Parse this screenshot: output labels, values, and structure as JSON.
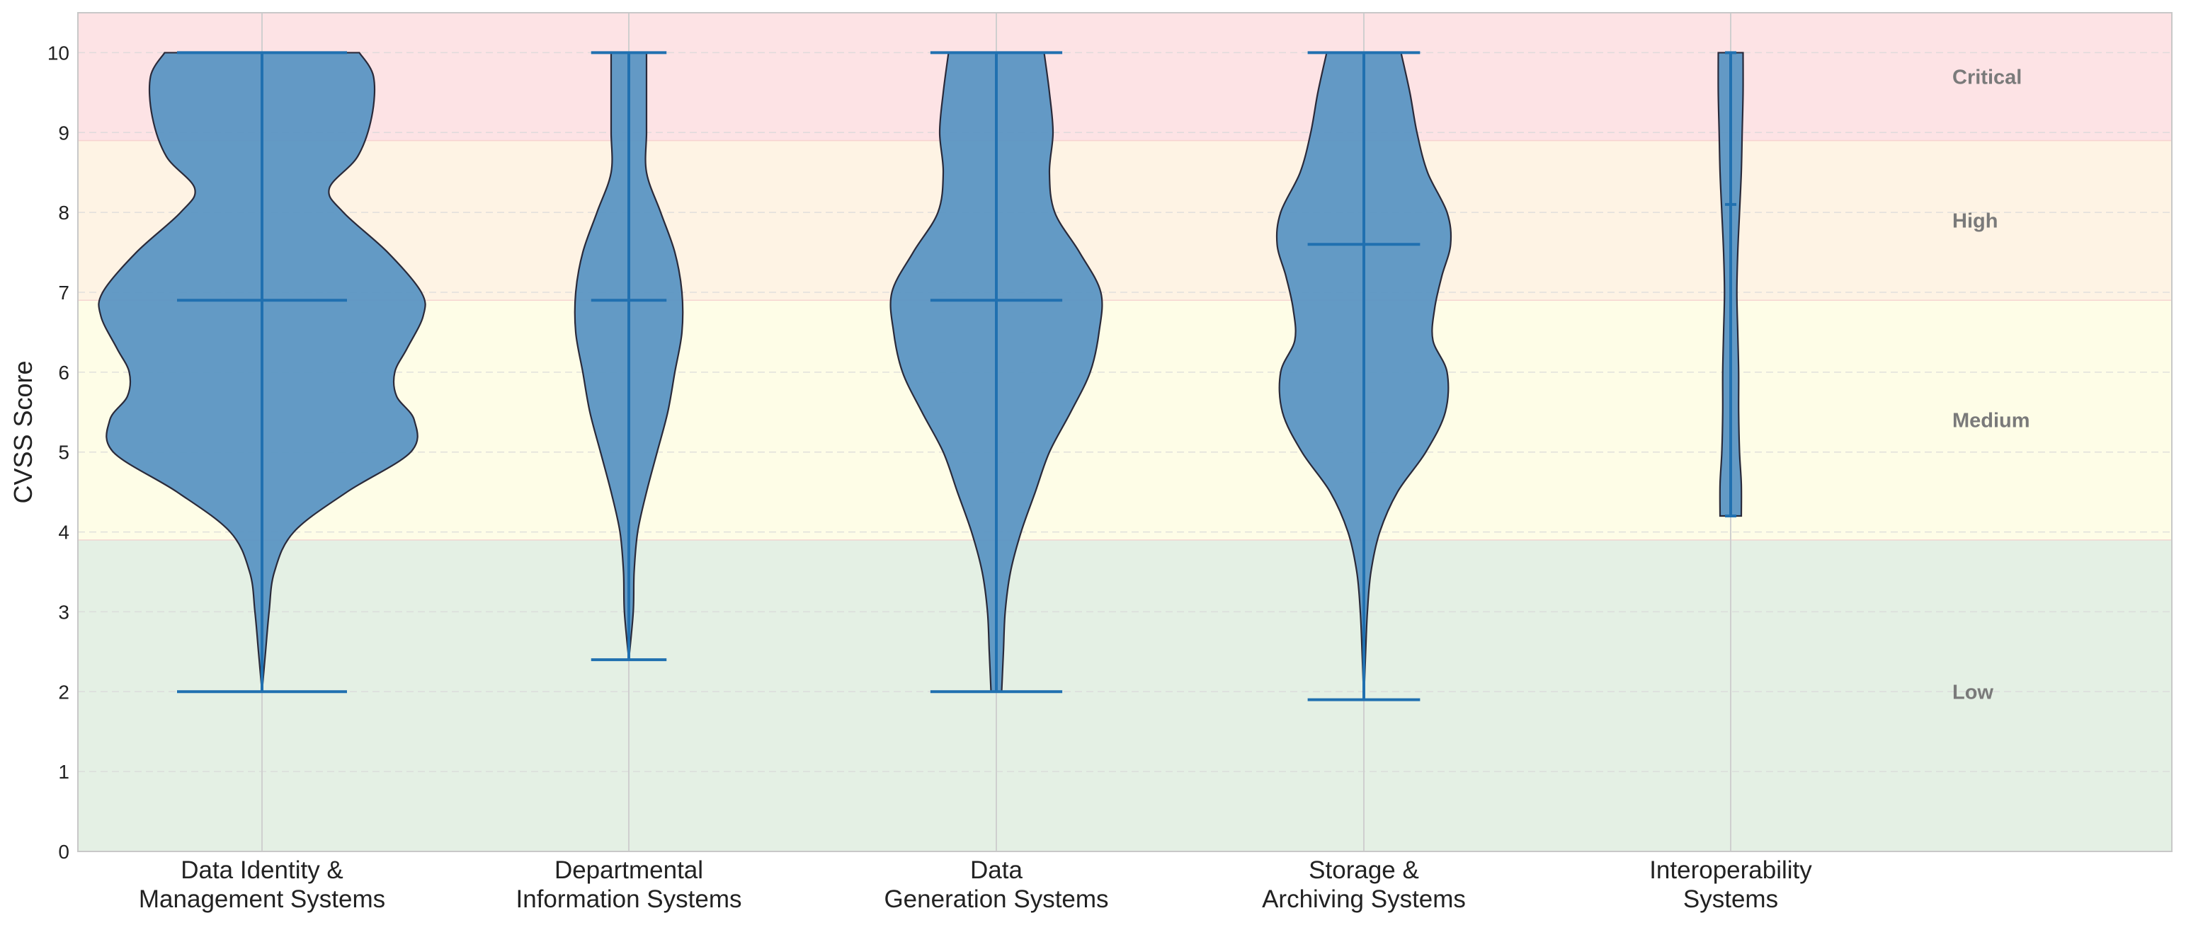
{
  "chart_data": {
    "type": "violin",
    "ylabel": "CVSS Score",
    "ylim": [
      0,
      10.5
    ],
    "yticks": [
      0,
      1,
      2,
      3,
      4,
      5,
      6,
      7,
      8,
      9,
      10
    ],
    "categories": [
      [
        "Data Identity &",
        "Management Systems"
      ],
      [
        "Departmental",
        "Information Systems"
      ],
      [
        "Data",
        "Generation Systems"
      ],
      [
        "Storage &",
        "Archiving Systems"
      ],
      [
        "Interoperability",
        "Systems"
      ]
    ],
    "grid": true,
    "severity_bands": [
      {
        "label": "Low",
        "from": 0,
        "to": 3.9,
        "color": "#e4f0e4"
      },
      {
        "label": "Medium",
        "from": 3.9,
        "to": 6.9,
        "color": "#fefde7"
      },
      {
        "label": "High",
        "from": 6.9,
        "to": 8.9,
        "color": "#fef3e4"
      },
      {
        "label": "Critical",
        "from": 8.9,
        "to": 10.5,
        "color": "#fde3e5"
      }
    ],
    "violin_color": "#5b95c3",
    "line_color": "#2070b0",
    "series": [
      {
        "min": 2.0,
        "max": 10.0,
        "median": 6.9,
        "profile": [
          [
            2.0,
            0.0
          ],
          [
            2.5,
            0.02
          ],
          [
            3.0,
            0.04
          ],
          [
            3.5,
            0.07
          ],
          [
            4.0,
            0.18
          ],
          [
            4.5,
            0.48
          ],
          [
            5.0,
            0.84
          ],
          [
            5.4,
            0.86
          ],
          [
            5.7,
            0.76
          ],
          [
            6.0,
            0.75
          ],
          [
            6.3,
            0.82
          ],
          [
            6.7,
            0.91
          ],
          [
            7.0,
            0.9
          ],
          [
            7.5,
            0.71
          ],
          [
            8.0,
            0.46
          ],
          [
            8.3,
            0.38
          ],
          [
            8.7,
            0.54
          ],
          [
            9.2,
            0.62
          ],
          [
            9.7,
            0.63
          ],
          [
            10.0,
            0.55
          ]
        ]
      },
      {
        "min": 2.4,
        "max": 10.0,
        "median": 6.9,
        "profile": [
          [
            2.4,
            0.0
          ],
          [
            3.0,
            0.025
          ],
          [
            3.5,
            0.03
          ],
          [
            4.0,
            0.05
          ],
          [
            4.5,
            0.1
          ],
          [
            5.0,
            0.16
          ],
          [
            5.5,
            0.22
          ],
          [
            6.0,
            0.26
          ],
          [
            6.5,
            0.3
          ],
          [
            7.0,
            0.3
          ],
          [
            7.5,
            0.26
          ],
          [
            8.0,
            0.18
          ],
          [
            8.5,
            0.1
          ],
          [
            9.0,
            0.1
          ],
          [
            9.5,
            0.1
          ],
          [
            10.0,
            0.1
          ]
        ]
      },
      {
        "min": 2.0,
        "max": 10.0,
        "median": 6.9,
        "profile": [
          [
            2.0,
            0.03
          ],
          [
            2.5,
            0.04
          ],
          [
            3.0,
            0.05
          ],
          [
            3.5,
            0.08
          ],
          [
            4.0,
            0.14
          ],
          [
            4.5,
            0.22
          ],
          [
            5.0,
            0.3
          ],
          [
            5.5,
            0.42
          ],
          [
            6.0,
            0.53
          ],
          [
            6.5,
            0.58
          ],
          [
            7.0,
            0.59
          ],
          [
            7.5,
            0.47
          ],
          [
            8.0,
            0.33
          ],
          [
            8.5,
            0.3
          ],
          [
            9.0,
            0.32
          ],
          [
            9.5,
            0.3
          ],
          [
            10.0,
            0.27
          ]
        ]
      },
      {
        "min": 1.9,
        "max": 10.0,
        "median": 7.6,
        "profile": [
          [
            1.9,
            0.0
          ],
          [
            2.5,
            0.01
          ],
          [
            3.0,
            0.02
          ],
          [
            3.5,
            0.04
          ],
          [
            4.0,
            0.09
          ],
          [
            4.5,
            0.19
          ],
          [
            5.0,
            0.35
          ],
          [
            5.5,
            0.46
          ],
          [
            6.0,
            0.47
          ],
          [
            6.4,
            0.39
          ],
          [
            6.8,
            0.4
          ],
          [
            7.2,
            0.44
          ],
          [
            7.6,
            0.49
          ],
          [
            8.0,
            0.47
          ],
          [
            8.5,
            0.36
          ],
          [
            9.0,
            0.3
          ],
          [
            9.5,
            0.26
          ],
          [
            10.0,
            0.21
          ]
        ]
      },
      {
        "min": 4.2,
        "max": 10.0,
        "median": 8.1,
        "profile": [
          [
            4.2,
            0.06
          ],
          [
            4.6,
            0.06
          ],
          [
            5.0,
            0.05
          ],
          [
            5.5,
            0.045
          ],
          [
            6.0,
            0.045
          ],
          [
            6.5,
            0.04
          ],
          [
            7.0,
            0.035
          ],
          [
            7.5,
            0.04
          ],
          [
            8.0,
            0.05
          ],
          [
            8.5,
            0.06
          ],
          [
            9.0,
            0.065
          ],
          [
            9.5,
            0.07
          ],
          [
            10.0,
            0.07
          ]
        ]
      }
    ]
  }
}
